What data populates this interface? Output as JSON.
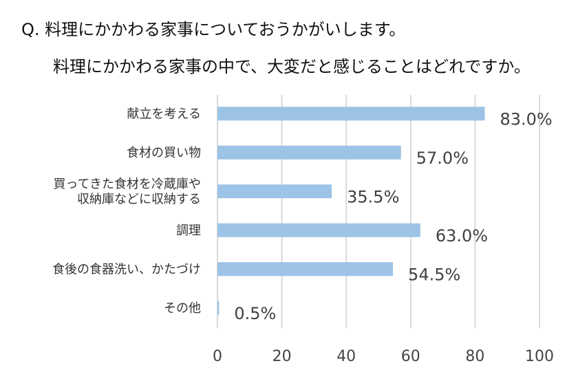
{
  "question": {
    "line1": "Q. 料理にかかわる家事についておうかがいします。",
    "line2": "料理にかかわる家事の中で、大変だと感じることはどれですか。"
  },
  "chart_data": {
    "type": "bar",
    "orientation": "horizontal",
    "categories": [
      [
        "献立を考える"
      ],
      [
        "食材の買い物"
      ],
      [
        "買ってきた食材を冷蔵庫や",
        "収納庫などに収納する"
      ],
      [
        "調理"
      ],
      [
        "食後の食器洗い、かたづけ"
      ],
      [
        "その他"
      ]
    ],
    "values": [
      83.0,
      57.0,
      35.5,
      63.0,
      54.5,
      0.5
    ],
    "value_labels": [
      "83.0%",
      "57.0%",
      "35.5%",
      "63.0%",
      "54.5%",
      "0.5%"
    ],
    "xlim": [
      0,
      100
    ],
    "xticks": [
      0,
      20,
      40,
      60,
      80,
      100
    ],
    "xtick_labels": [
      "0",
      "20",
      "40",
      "60",
      "80",
      "100"
    ],
    "grid": true,
    "legend": "none",
    "colors": {
      "bar": "#9dc3e6",
      "grid": "#d9d9d9"
    }
  }
}
